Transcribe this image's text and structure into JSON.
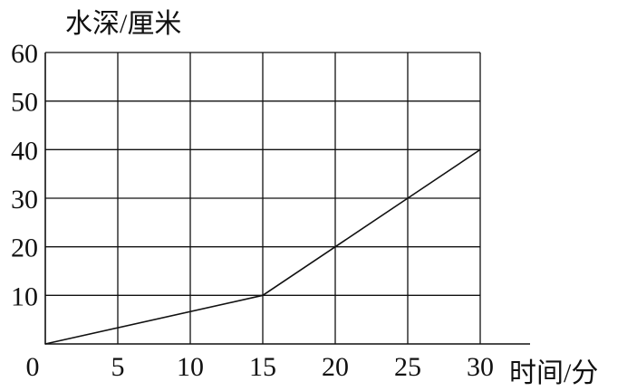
{
  "chart_data": {
    "type": "line",
    "ylabel": "水深/厘米",
    "xlabel": "时间/分",
    "x": [
      0,
      15,
      20,
      25,
      30
    ],
    "y": [
      0,
      10,
      20,
      30,
      40
    ],
    "xticks": [
      "0",
      "5",
      "10",
      "15",
      "20",
      "25",
      "30"
    ],
    "yticks": [
      "10",
      "20",
      "30",
      "40",
      "50",
      "60"
    ],
    "xlim": [
      0,
      30
    ],
    "ylim": [
      0,
      60
    ],
    "grid": true,
    "colors": {
      "line": "#111111",
      "grid": "#111111"
    }
  }
}
